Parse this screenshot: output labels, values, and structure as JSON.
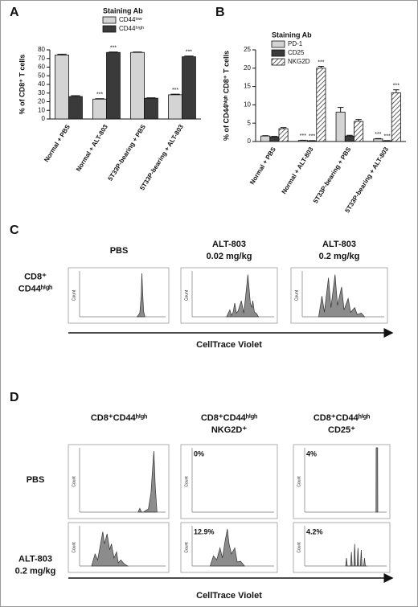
{
  "chart_data": [
    {
      "type": "bar",
      "panel": "A",
      "ylabel": "% of CD8⁺ T cells",
      "legend_title": "Staining Ab",
      "categories": [
        "Normal + PBS",
        "Normal + ALT-803",
        "5T33P-bearing + PBS",
        "5T33P-bearing + ALT-803"
      ],
      "ylim": [
        0,
        80
      ],
      "yticks": [
        0,
        10,
        20,
        30,
        40,
        50,
        60,
        70,
        80
      ],
      "series": [
        {
          "name": "CD44ˡᵒʷ",
          "color": "#d4d4d4",
          "values": [
            74,
            23,
            77,
            28
          ],
          "errors": [
            1,
            0.5,
            0.5,
            0.7
          ],
          "sig": [
            null,
            "***",
            null,
            "***"
          ]
        },
        {
          "name": "CD44ʰⁱᵍʰ",
          "color": "#3a3a3a",
          "values": [
            26,
            77,
            24,
            72
          ],
          "errors": [
            1,
            0.5,
            0.5,
            0.8
          ],
          "sig": [
            null,
            "***",
            null,
            "***"
          ]
        }
      ]
    },
    {
      "type": "bar",
      "panel": "B",
      "ylabel": "% of CD44ʰⁱᵍʰ CD8⁺ T cells",
      "legend_title": "Staining Ab",
      "categories": [
        "Normal + PBS",
        "Normal + ALT-803",
        "5T33P-bearing + PBS",
        "5T33P-bearing + ALT-803"
      ],
      "ylim": [
        0,
        25
      ],
      "yticks": [
        0,
        5,
        10,
        15,
        20,
        25
      ],
      "series": [
        {
          "name": "PD-1",
          "color": "#d4d4d4",
          "values": [
            1.5,
            0.3,
            8,
            0.7
          ],
          "errors": [
            0.1,
            0.05,
            1.3,
            0.1
          ],
          "sig": [
            null,
            "***",
            null,
            "***"
          ]
        },
        {
          "name": "CD25",
          "color": "#3a3a3a",
          "values": [
            1.3,
            0.2,
            1.5,
            0.2
          ],
          "errors": [
            0.1,
            0.05,
            0.2,
            0.05
          ],
          "sig": [
            null,
            "***",
            null,
            "***"
          ]
        },
        {
          "name": "NKG2D",
          "color": "#ffffff",
          "hatch": true,
          "values": [
            3.5,
            20,
            5.5,
            13.3
          ],
          "errors": [
            0.3,
            0.5,
            0.5,
            0.8
          ],
          "sig": [
            null,
            "***",
            null,
            "***"
          ]
        }
      ]
    },
    {
      "type": "area",
      "ylabel": "Count",
      "xlim": [
        0,
        5
      ],
      "ylim": [
        0,
        100
      ],
      "color": "#8c8c8c",
      "x": [
        3.35,
        3.5,
        3.58,
        3.62,
        3.66,
        3.72,
        3.8
      ],
      "values": [
        0,
        8,
        45,
        95,
        60,
        12,
        0
      ]
    },
    {
      "type": "area",
      "ylabel": "Count",
      "xlim": [
        0,
        5
      ],
      "ylim": [
        0,
        100
      ],
      "color": "#8c8c8c",
      "x": [
        2.1,
        2.3,
        2.4,
        2.5,
        2.6,
        2.7,
        2.8,
        3.0,
        3.15,
        3.25,
        3.4,
        3.55,
        3.65,
        3.7,
        3.8,
        3.9,
        4.05
      ],
      "values": [
        0,
        15,
        3,
        10,
        30,
        8,
        12,
        35,
        8,
        40,
        92,
        30,
        20,
        35,
        10,
        8,
        0
      ]
    },
    {
      "type": "area",
      "ylabel": "Count",
      "xlim": [
        0,
        5
      ],
      "ylim": [
        0,
        100
      ],
      "color": "#8c8c8c",
      "x": [
        1.0,
        1.2,
        1.35,
        1.6,
        1.75,
        2.0,
        2.15,
        2.4,
        2.55,
        2.8,
        2.95,
        3.2,
        3.35,
        3.6,
        3.8
      ],
      "values": [
        0,
        45,
        10,
        85,
        20,
        92,
        25,
        65,
        15,
        40,
        10,
        20,
        5,
        8,
        0
      ]
    },
    {
      "type": "area",
      "ylabel": "Count",
      "xlim": [
        0,
        5
      ],
      "ylim": [
        0,
        100
      ],
      "color": "#8c8c8c",
      "x": [
        3.4,
        3.5,
        3.6,
        3.7,
        4.0,
        4.15,
        4.25,
        4.32,
        4.4,
        4.5
      ],
      "values": [
        0,
        6,
        0,
        0,
        5,
        30,
        70,
        95,
        40,
        0
      ]
    },
    {
      "type": "area",
      "ylabel": "Count",
      "xlim": [
        0,
        5
      ],
      "ylim": [
        0,
        100
      ],
      "color": "#8c8c8c",
      "annotation": "0%"
    },
    {
      "type": "area",
      "ylabel": "Count",
      "xlim": [
        0,
        5
      ],
      "ylim": [
        0,
        100
      ],
      "color": "#8c8c8c",
      "annotation": "4%",
      "x": [
        4.35,
        4.36,
        4.45,
        4.46
      ],
      "values": [
        0,
        100,
        100,
        0
      ]
    },
    {
      "type": "area",
      "ylabel": "Count",
      "xlim": [
        0,
        5
      ],
      "ylim": [
        0,
        100
      ],
      "color": "#8c8c8c",
      "x": [
        0.7,
        0.9,
        1.05,
        1.2,
        1.35,
        1.45,
        1.6,
        1.75,
        1.85,
        2.0,
        2.15,
        2.25,
        2.4,
        2.6,
        2.8
      ],
      "values": [
        0,
        30,
        15,
        50,
        85,
        55,
        80,
        40,
        55,
        20,
        35,
        8,
        15,
        5,
        0
      ]
    },
    {
      "type": "area",
      "ylabel": "Count",
      "xlim": [
        0,
        5
      ],
      "ylim": [
        0,
        100
      ],
      "color": "#8c8c8c",
      "annotation": "12.9%",
      "x": [
        1.1,
        1.3,
        1.5,
        1.7,
        1.85,
        2.0,
        2.15,
        2.25,
        2.4,
        2.6,
        2.75,
        2.95,
        3.2
      ],
      "values": [
        0,
        25,
        15,
        45,
        20,
        60,
        92,
        55,
        30,
        45,
        10,
        12,
        0
      ]
    },
    {
      "type": "area",
      "ylabel": "Count",
      "xlim": [
        0,
        5
      ],
      "ylim": [
        0,
        100
      ],
      "color": "#8c8c8c",
      "annotation": "4.2%",
      "x": [
        2.5,
        2.55,
        2.6,
        2.8,
        2.85,
        2.9,
        3.0,
        3.05,
        3.1,
        3.2,
        3.25,
        3.3,
        3.4,
        3.45,
        3.5,
        3.6,
        3.65,
        3.7,
        3.8
      ],
      "values": [
        0,
        20,
        0,
        0,
        35,
        0,
        0,
        55,
        0,
        0,
        45,
        0,
        0,
        40,
        0,
        0,
        20,
        0,
        0
      ]
    }
  ],
  "panel_c": {
    "letter": "C",
    "columns": [
      [
        "PBS"
      ],
      [
        "ALT-803",
        "0.02 mg/kg"
      ],
      [
        "ALT-803",
        "0.2 mg/kg"
      ]
    ],
    "rows": [
      [
        "CD8⁺",
        "CD44ʰⁱᵍʰ"
      ]
    ],
    "xlabel": "CellTrace Violet"
  },
  "panel_d": {
    "letter": "D",
    "columns": [
      [
        "CD8⁺CD44ʰⁱᵍʰ"
      ],
      [
        "CD8⁺CD44ʰⁱᵍʰ",
        "NKG2D⁺"
      ],
      [
        "CD8⁺CD44ʰⁱᵍʰ",
        "CD25⁺"
      ]
    ],
    "rows": [
      [
        "PBS"
      ],
      [
        "ALT-803",
        "0.2 mg/kg"
      ]
    ],
    "xlabel": "CellTrace Violet"
  }
}
